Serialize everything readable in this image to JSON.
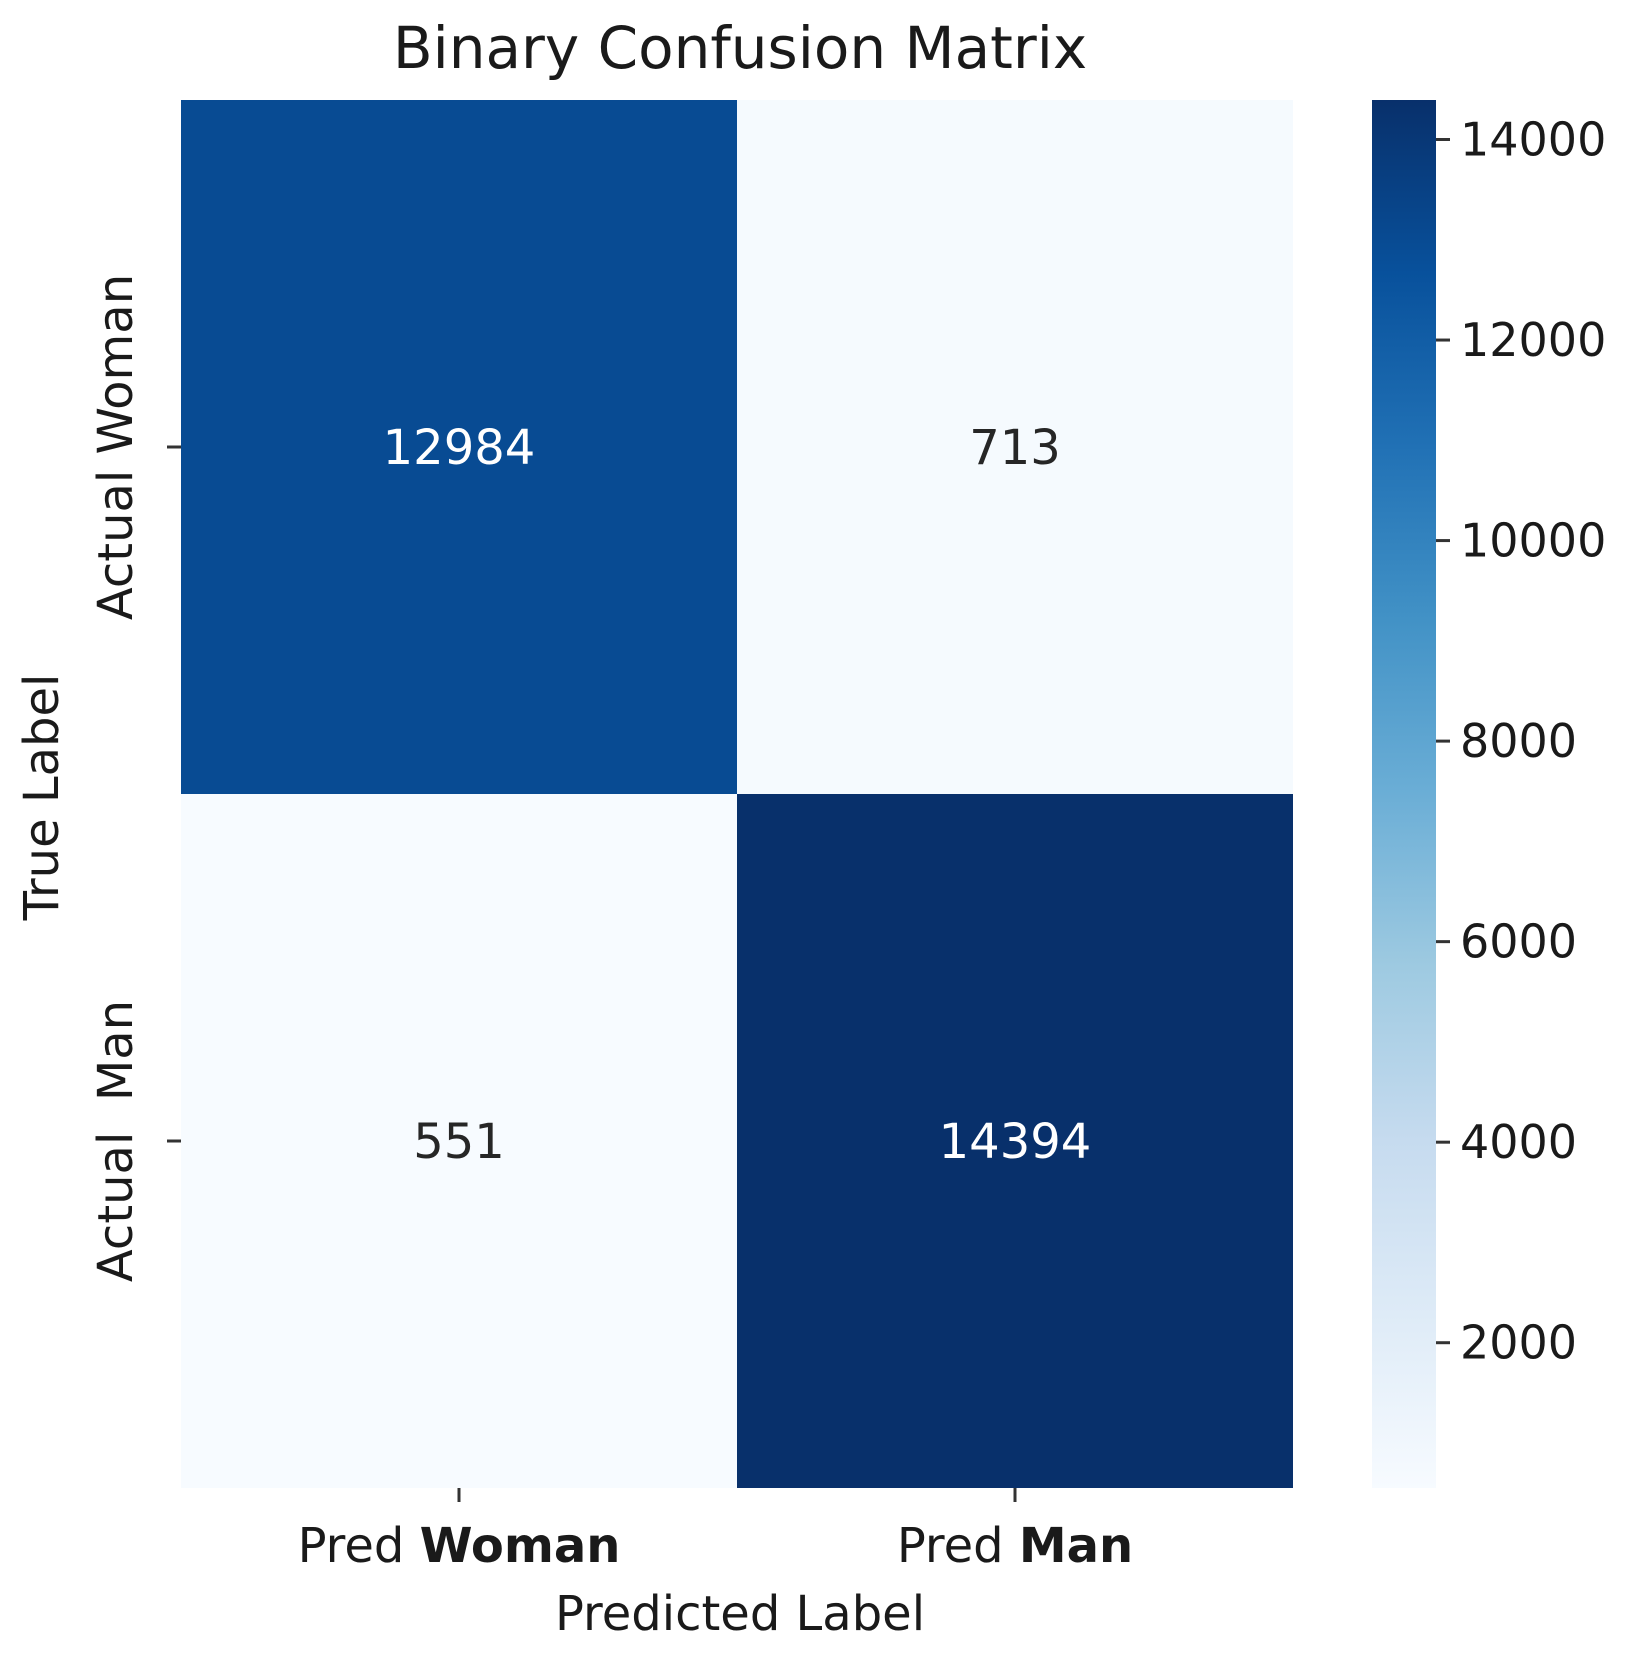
{
  "chart_data": {
    "type": "heatmap",
    "title": "Binary Confusion Matrix",
    "xlabel": "Predicted Label",
    "ylabel": "True Label",
    "x_categories": [
      {
        "prefix": "Pred",
        "emphasis": "Woman"
      },
      {
        "prefix": "Pred",
        "emphasis": "Man"
      }
    ],
    "y_categories": [
      "Actual Woman",
      "Actual  Man"
    ],
    "values": [
      [
        12984,
        713
      ],
      [
        551,
        14394
      ]
    ],
    "colormap": "Blues",
    "color_range": [
      551,
      14394
    ],
    "colorbar_ticks": [
      {
        "value": 2000,
        "label": "2000"
      },
      {
        "value": 4000,
        "label": "4000"
      },
      {
        "value": 6000,
        "label": "6000"
      },
      {
        "value": 8000,
        "label": "8000"
      },
      {
        "value": 10000,
        "label": "10000"
      },
      {
        "value": 12000,
        "label": "12000"
      },
      {
        "value": 14000,
        "label": "14000"
      }
    ],
    "colors": {
      "light_text": "#ffffff",
      "dark_text": "#262626"
    }
  }
}
